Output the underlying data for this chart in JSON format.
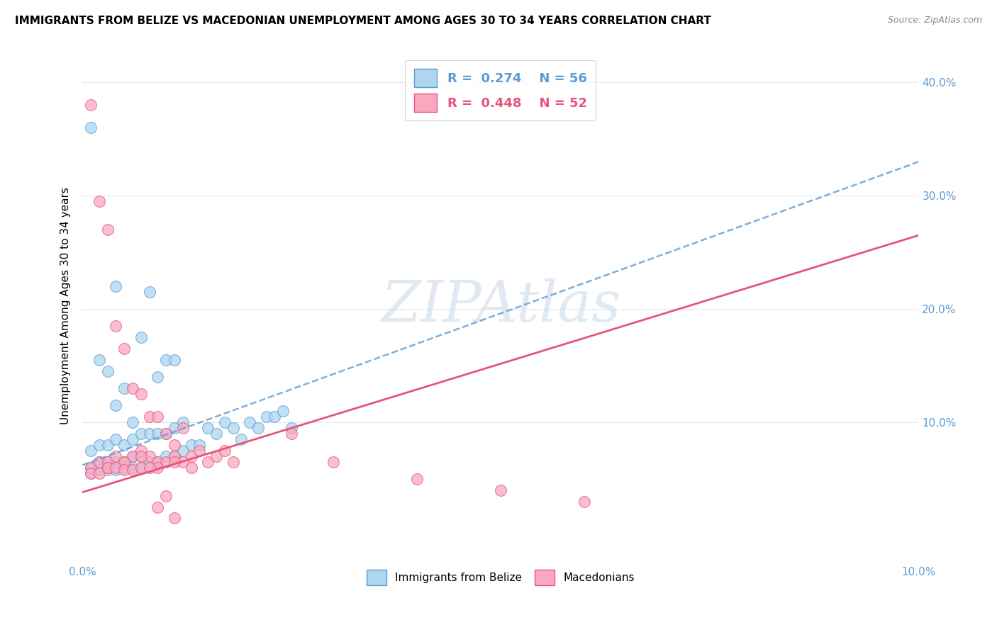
{
  "title": "IMMIGRANTS FROM BELIZE VS MACEDONIAN UNEMPLOYMENT AMONG AGES 30 TO 34 YEARS CORRELATION CHART",
  "source": "Source: ZipAtlas.com",
  "ylabel": "Unemployment Among Ages 30 to 34 years",
  "ylabel_right_ticks": [
    "40.0%",
    "30.0%",
    "20.0%",
    "10.0%"
  ],
  "ylabel_right_vals": [
    0.4,
    0.3,
    0.2,
    0.1
  ],
  "xlim": [
    0.0,
    0.1
  ],
  "ylim": [
    -0.025,
    0.43
  ],
  "legend_blue_R": "0.274",
  "legend_blue_N": "56",
  "legend_pink_R": "0.448",
  "legend_pink_N": "52",
  "blue_color": "#AED6F1",
  "pink_color": "#F9A8C0",
  "blue_edge_color": "#5B9BD5",
  "pink_edge_color": "#E8547A",
  "blue_line_color": "#5B9BD5",
  "pink_line_color": "#E8547A",
  "watermark": "ZIPAtlas",
  "blue_scatter_x": [
    0.001,
    0.004,
    0.002,
    0.003,
    0.004,
    0.005,
    0.006,
    0.007,
    0.008,
    0.009,
    0.01,
    0.011,
    0.001,
    0.002,
    0.003,
    0.004,
    0.005,
    0.006,
    0.007,
    0.008,
    0.009,
    0.01,
    0.011,
    0.012,
    0.001,
    0.002,
    0.003,
    0.004,
    0.005,
    0.006,
    0.007,
    0.008,
    0.009,
    0.01,
    0.011,
    0.012,
    0.013,
    0.014,
    0.015,
    0.016,
    0.017,
    0.018,
    0.019,
    0.02,
    0.021,
    0.022,
    0.023,
    0.024,
    0.025,
    0.001,
    0.002,
    0.003,
    0.004,
    0.005,
    0.006,
    0.007
  ],
  "blue_scatter_y": [
    0.36,
    0.22,
    0.155,
    0.145,
    0.115,
    0.13,
    0.1,
    0.175,
    0.215,
    0.14,
    0.155,
    0.155,
    0.075,
    0.08,
    0.08,
    0.085,
    0.08,
    0.085,
    0.09,
    0.09,
    0.09,
    0.09,
    0.095,
    0.1,
    0.06,
    0.065,
    0.065,
    0.065,
    0.065,
    0.07,
    0.07,
    0.065,
    0.065,
    0.07,
    0.07,
    0.075,
    0.08,
    0.08,
    0.095,
    0.09,
    0.1,
    0.095,
    0.085,
    0.1,
    0.095,
    0.105,
    0.105,
    0.11,
    0.095,
    0.055,
    0.058,
    0.058,
    0.058,
    0.06,
    0.06,
    0.06
  ],
  "pink_scatter_x": [
    0.001,
    0.002,
    0.003,
    0.004,
    0.005,
    0.006,
    0.007,
    0.008,
    0.009,
    0.01,
    0.011,
    0.012,
    0.001,
    0.002,
    0.003,
    0.004,
    0.005,
    0.006,
    0.007,
    0.008,
    0.009,
    0.01,
    0.011,
    0.012,
    0.013,
    0.014,
    0.015,
    0.016,
    0.017,
    0.018,
    0.003,
    0.005,
    0.007,
    0.009,
    0.011,
    0.013,
    0.025,
    0.03,
    0.04,
    0.05,
    0.06,
    0.001,
    0.002,
    0.003,
    0.004,
    0.005,
    0.006,
    0.007,
    0.008,
    0.009,
    0.01,
    0.011
  ],
  "pink_scatter_y": [
    0.38,
    0.295,
    0.27,
    0.185,
    0.165,
    0.13,
    0.125,
    0.105,
    0.105,
    0.09,
    0.08,
    0.095,
    0.06,
    0.065,
    0.065,
    0.07,
    0.065,
    0.07,
    0.075,
    0.07,
    0.065,
    0.065,
    0.07,
    0.065,
    0.07,
    0.075,
    0.065,
    0.07,
    0.075,
    0.065,
    0.06,
    0.065,
    0.07,
    0.06,
    0.065,
    0.06,
    0.09,
    0.065,
    0.05,
    0.04,
    0.03,
    0.055,
    0.055,
    0.06,
    0.06,
    0.058,
    0.058,
    0.06,
    0.06,
    0.025,
    0.035,
    0.015
  ],
  "blue_trend_x": [
    0.0,
    0.1
  ],
  "blue_trend_y": [
    0.062,
    0.33
  ],
  "pink_trend_x": [
    0.0,
    0.1
  ],
  "pink_trend_y": [
    0.038,
    0.265
  ],
  "grid_color": "#DDDDDD",
  "background_color": "#FFFFFF"
}
